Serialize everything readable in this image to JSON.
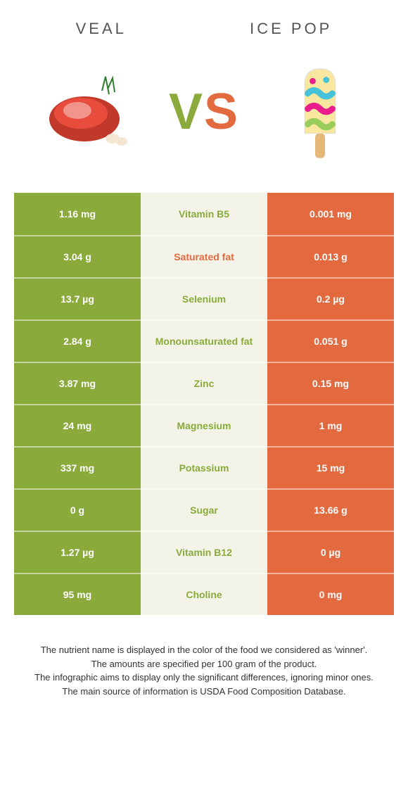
{
  "colors": {
    "left_bg": "#8aaa3b",
    "right_bg": "#e3693f",
    "mid_bg": "#f3f3e8",
    "left_text": "#8aaa3b",
    "right_text": "#e3693f",
    "vs_left": "#8aaa3b",
    "vs_right": "#e3693f"
  },
  "header": {
    "left_title": "Veal",
    "right_title": "Ice pop",
    "vs": "VS"
  },
  "rows": [
    {
      "left": "1.16 mg",
      "label": "Vitamin B5",
      "right": "0.001 mg",
      "winner": "left"
    },
    {
      "left": "3.04 g",
      "label": "Saturated fat",
      "right": "0.013 g",
      "winner": "right"
    },
    {
      "left": "13.7 µg",
      "label": "Selenium",
      "right": "0.2 µg",
      "winner": "left"
    },
    {
      "left": "2.84 g",
      "label": "Monounsaturated fat",
      "right": "0.051 g",
      "winner": "left"
    },
    {
      "left": "3.87 mg",
      "label": "Zinc",
      "right": "0.15 mg",
      "winner": "left"
    },
    {
      "left": "24 mg",
      "label": "Magnesium",
      "right": "1 mg",
      "winner": "left"
    },
    {
      "left": "337 mg",
      "label": "Potassium",
      "right": "15 mg",
      "winner": "left"
    },
    {
      "left": "0 g",
      "label": "Sugar",
      "right": "13.66 g",
      "winner": "left"
    },
    {
      "left": "1.27 µg",
      "label": "Vitamin B12",
      "right": "0 µg",
      "winner": "left"
    },
    {
      "left": "95 mg",
      "label": "Choline",
      "right": "0 mg",
      "winner": "left"
    }
  ],
  "footer": {
    "line1": "The nutrient name is displayed in the color of the food we considered as 'winner'.",
    "line2": "The amounts are specified per 100 gram of the product.",
    "line3": "The infographic aims to display only the significant differences, ignoring minor ones.",
    "line4": "The main source of information is USDA Food Composition Database."
  }
}
